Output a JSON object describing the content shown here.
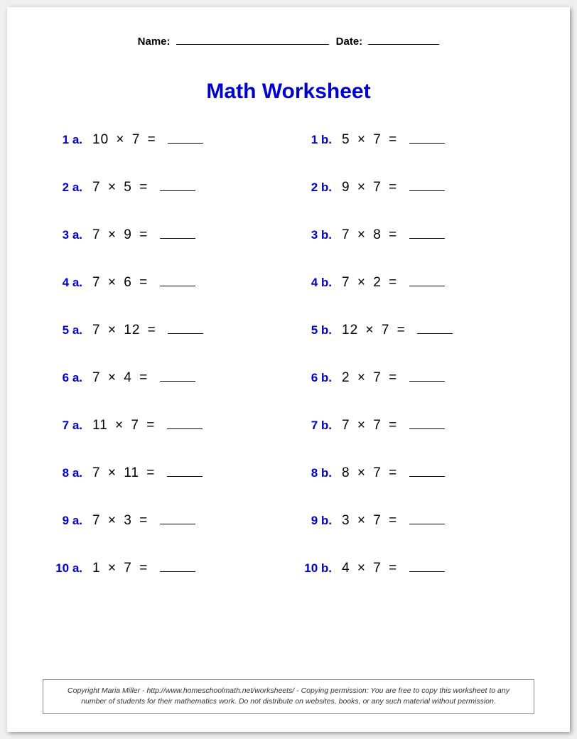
{
  "header": {
    "name_label": "Name:",
    "date_label": "Date:"
  },
  "title": "Math Worksheet",
  "operator_symbol": "×",
  "equals_symbol": "=",
  "problems": [
    {
      "label": "1 a.",
      "a": 10,
      "b": 7
    },
    {
      "label": "1 b.",
      "a": 5,
      "b": 7
    },
    {
      "label": "2 a.",
      "a": 7,
      "b": 5
    },
    {
      "label": "2 b.",
      "a": 9,
      "b": 7
    },
    {
      "label": "3 a.",
      "a": 7,
      "b": 9
    },
    {
      "label": "3 b.",
      "a": 7,
      "b": 8
    },
    {
      "label": "4 a.",
      "a": 7,
      "b": 6
    },
    {
      "label": "4 b.",
      "a": 7,
      "b": 2
    },
    {
      "label": "5 a.",
      "a": 7,
      "b": 12
    },
    {
      "label": "5 b.",
      "a": 12,
      "b": 7
    },
    {
      "label": "6 a.",
      "a": 7,
      "b": 4
    },
    {
      "label": "6 b.",
      "a": 2,
      "b": 7
    },
    {
      "label": "7 a.",
      "a": 11,
      "b": 7
    },
    {
      "label": "7 b.",
      "a": 7,
      "b": 7
    },
    {
      "label": "8 a.",
      "a": 7,
      "b": 11
    },
    {
      "label": "8 b.",
      "a": 8,
      "b": 7
    },
    {
      "label": "9 a.",
      "a": 7,
      "b": 3
    },
    {
      "label": "9 b.",
      "a": 3,
      "b": 7
    },
    {
      "label": "10 a.",
      "a": 1,
      "b": 7
    },
    {
      "label": "10 b.",
      "a": 4,
      "b": 7
    }
  ],
  "footer": "Copyright Maria Miller - http://www.homeschoolmath.net/worksheets/ - Copying permission: You are free to copy this worksheet to any number of students for their mathematics work. Do not distribute on websites, books, or any such material without permission.",
  "colors": {
    "accent": "#0000cc",
    "text": "#000000",
    "page_bg": "#ffffff"
  }
}
